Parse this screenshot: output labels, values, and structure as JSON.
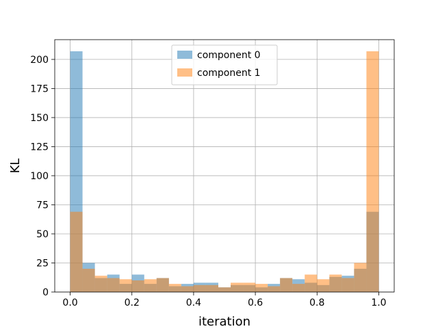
{
  "chart_data": {
    "type": "bar",
    "title": "",
    "xlabel": "iteration",
    "ylabel": "KL",
    "xlim": [
      -0.05,
      1.05
    ],
    "ylim": [
      0,
      217
    ],
    "grid": true,
    "legend_position": "top-center",
    "xticks": [
      {
        "value": 0.0,
        "label": "0.0"
      },
      {
        "value": 0.2,
        "label": "0.2"
      },
      {
        "value": 0.4,
        "label": "0.4"
      },
      {
        "value": 0.6,
        "label": "0.6"
      },
      {
        "value": 0.8,
        "label": "0.8"
      },
      {
        "value": 1.0,
        "label": "1.0"
      }
    ],
    "yticks": [
      {
        "value": 0,
        "label": "0"
      },
      {
        "value": 25,
        "label": "25"
      },
      {
        "value": 50,
        "label": "50"
      },
      {
        "value": 75,
        "label": "75"
      },
      {
        "value": 100,
        "label": "100"
      },
      {
        "value": 125,
        "label": "125"
      },
      {
        "value": 150,
        "label": "150"
      },
      {
        "value": 175,
        "label": "175"
      },
      {
        "value": 200,
        "label": "200"
      }
    ],
    "bin_edges": [
      0.0,
      0.04,
      0.08,
      0.12,
      0.16,
      0.2,
      0.24,
      0.28,
      0.32,
      0.36,
      0.4,
      0.44,
      0.48,
      0.52,
      0.56,
      0.6,
      0.64,
      0.68,
      0.72,
      0.76,
      0.8,
      0.84,
      0.88,
      0.92,
      0.96,
      1.0
    ],
    "series": [
      {
        "name": "component 0",
        "color": "#1f77b4",
        "values": [
          207,
          25,
          12,
          15,
          7,
          15,
          7,
          12,
          5,
          7,
          8,
          8,
          4,
          6,
          6,
          4,
          7,
          12,
          11,
          8,
          6,
          13,
          14,
          20,
          69
        ]
      },
      {
        "name": "component 1",
        "color": "#ff7f0e",
        "values": [
          69,
          20,
          14,
          12,
          11,
          10,
          11,
          12,
          7,
          5,
          6,
          6,
          4,
          8,
          8,
          7,
          5,
          12,
          7,
          15,
          11,
          15,
          12,
          25,
          207
        ]
      }
    ],
    "opacity": 0.5
  }
}
